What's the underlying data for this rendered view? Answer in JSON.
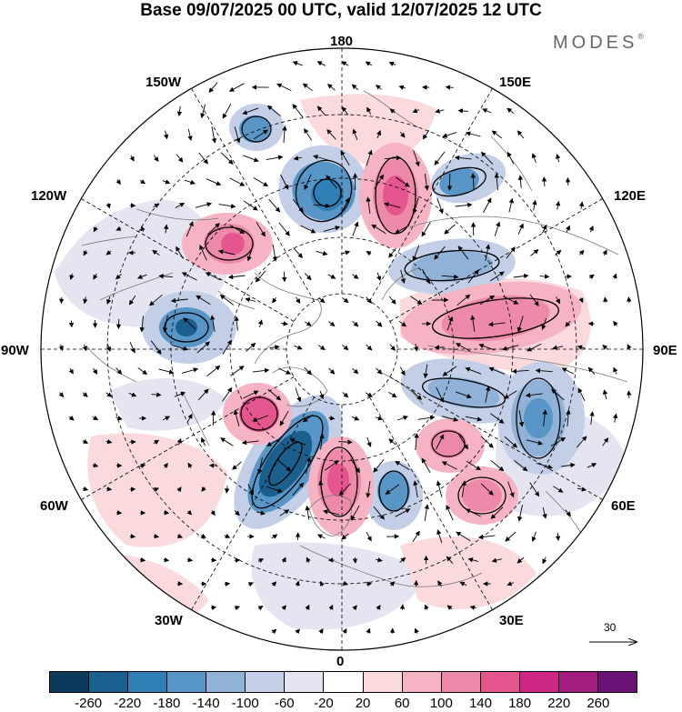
{
  "title": "Base 09/07/2025 00 UTC, valid 12/07/2025 12 UTC",
  "brand": {
    "name": "MODES",
    "mark": "®"
  },
  "longitude_labels": {
    "top": "180",
    "bottom": "0",
    "left": "90W",
    "right": "90E",
    "upper_left_1": "150W",
    "upper_left_2": "120W",
    "upper_right_1": "150E",
    "upper_right_2": "120E",
    "lower_left_1": "60W",
    "lower_left_2": "30W",
    "lower_right_1": "60E",
    "lower_right_2": "30E"
  },
  "vector_scale": {
    "value": "30"
  },
  "colorbar": {
    "colors": [
      "#0b3a5c",
      "#1b5f8f",
      "#2f7eb5",
      "#5796c6",
      "#8fb2d6",
      "#c3cfe6",
      "#e4e5f1",
      "#ffffff",
      "#fadadd",
      "#f5b3c3",
      "#ee8aa9",
      "#e5568f",
      "#cc2883",
      "#a31c7f",
      "#6b1276"
    ],
    "tick_labels": [
      "-260",
      "-220",
      "-180",
      "-140",
      "-100",
      "-60",
      "-20",
      "20",
      "60",
      "100",
      "140",
      "180",
      "220",
      "260"
    ]
  },
  "colors": {
    "land_outline": "#666666",
    "graticule": "#000000"
  }
}
